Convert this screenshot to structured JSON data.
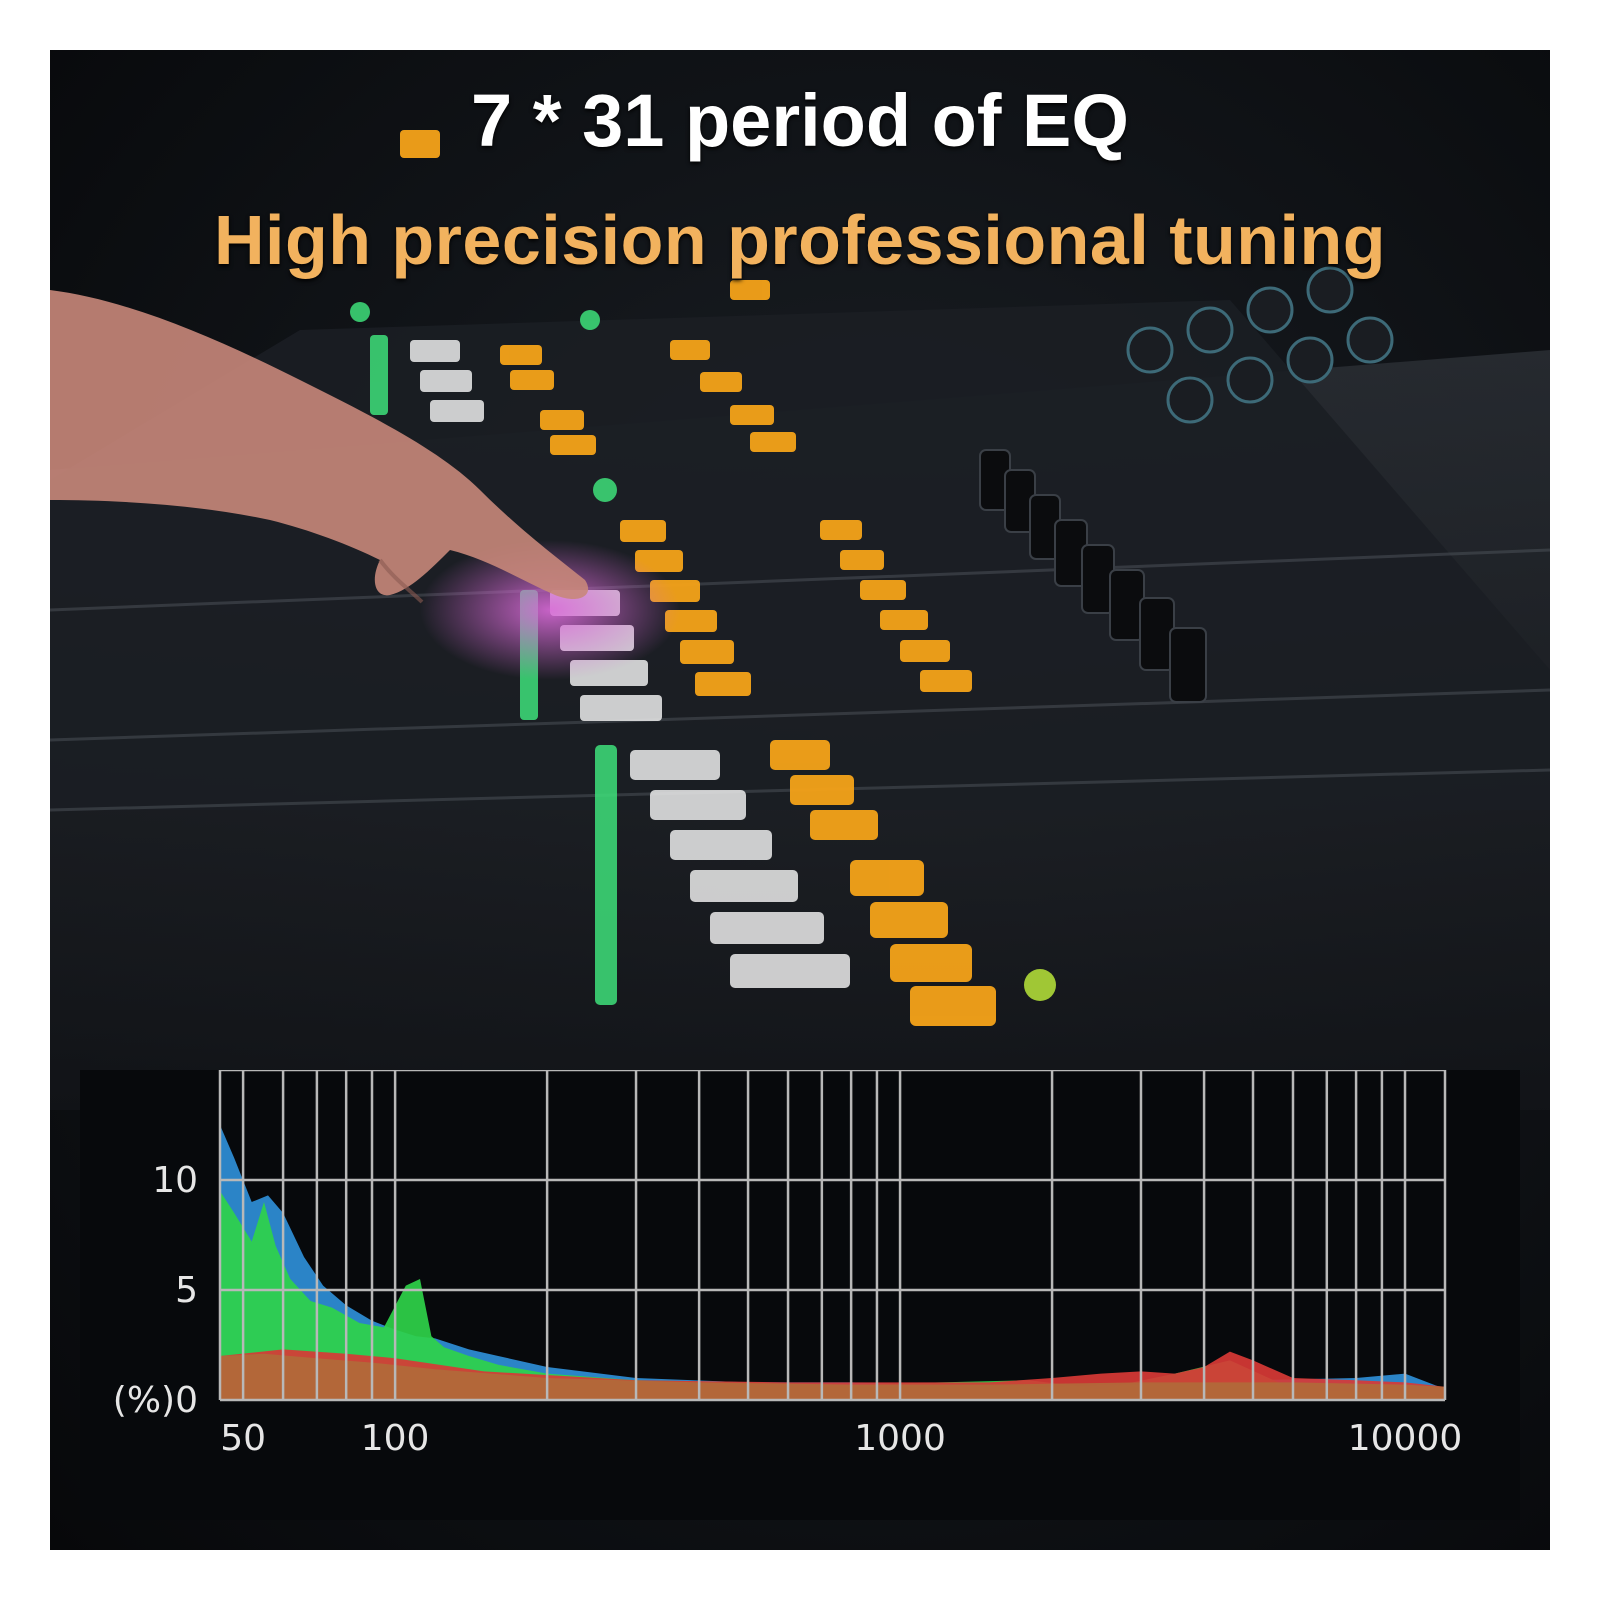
{
  "title": "7 * 31 period of EQ",
  "subtitle": "High precision professional tuning",
  "colors": {
    "title": "#ffffff",
    "subtitle": "#f2b25e",
    "blue": "#2f8fd8",
    "green": "#2fd24a",
    "red": "#d83a36",
    "brown": "#b06a3a",
    "grid": "#b8b8b8"
  },
  "chart_data": {
    "type": "area",
    "xscale": "log",
    "xlim": [
      45,
      12000
    ],
    "ylim": [
      0,
      15
    ],
    "grid": true,
    "x_ticks": [
      "50",
      "100",
      "1000",
      "10000"
    ],
    "y_ticks": [
      "(%)0",
      "5",
      "10"
    ],
    "series": [
      {
        "color": "#2f8fd8",
        "x": [
          45,
          48,
          52,
          56,
          60,
          66,
          72,
          80,
          90,
          100,
          110,
          120,
          140,
          160,
          200,
          300,
          500,
          800,
          1200,
          2000,
          3000,
          5000,
          8000,
          10000,
          12000
        ],
        "y": [
          12.5,
          11,
          9,
          9.3,
          8.5,
          6.5,
          5.2,
          4.3,
          3.6,
          3.2,
          2.9,
          2.8,
          2.3,
          2.0,
          1.5,
          1.0,
          0.8,
          0.8,
          0.7,
          0.6,
          0.7,
          0.9,
          1.0,
          1.2,
          0.5
        ]
      },
      {
        "color": "#2fd24a",
        "x": [
          45,
          48,
          52,
          55,
          58,
          62,
          68,
          75,
          85,
          95,
          105,
          112,
          118,
          125,
          140,
          160,
          200,
          300,
          500,
          800,
          1200,
          1800,
          2500,
          3500,
          4500,
          6000,
          10000,
          12000
        ],
        "y": [
          9.5,
          8.5,
          7.2,
          9.0,
          7.0,
          5.5,
          4.5,
          4.2,
          3.5,
          3.3,
          5.2,
          5.5,
          2.9,
          2.4,
          2.0,
          1.6,
          1.2,
          0.9,
          0.8,
          0.7,
          0.8,
          0.9,
          0.5,
          1.2,
          1.8,
          0.5,
          0.3,
          0.2
        ]
      },
      {
        "color": "#d83a36",
        "x": [
          45,
          60,
          80,
          100,
          150,
          300,
          600,
          1000,
          1500,
          2000,
          2500,
          3000,
          3500,
          4000,
          4500,
          5000,
          6000,
          8000,
          10000,
          12000
        ],
        "y": [
          2.0,
          2.3,
          2.1,
          1.9,
          1.3,
          0.9,
          0.8,
          0.8,
          0.8,
          1.0,
          1.2,
          1.3,
          1.2,
          1.5,
          2.2,
          1.8,
          1.0,
          0.9,
          0.8,
          0.6
        ]
      },
      {
        "color": "#b06a3a",
        "x": [
          45,
          55,
          70,
          90,
          120,
          200,
          400,
          800,
          1500,
          3000,
          6000,
          10000,
          12000
        ],
        "y": [
          2.0,
          2.1,
          1.9,
          1.7,
          1.4,
          1.0,
          0.8,
          0.7,
          0.7,
          0.8,
          0.8,
          0.7,
          0.6
        ]
      }
    ]
  }
}
